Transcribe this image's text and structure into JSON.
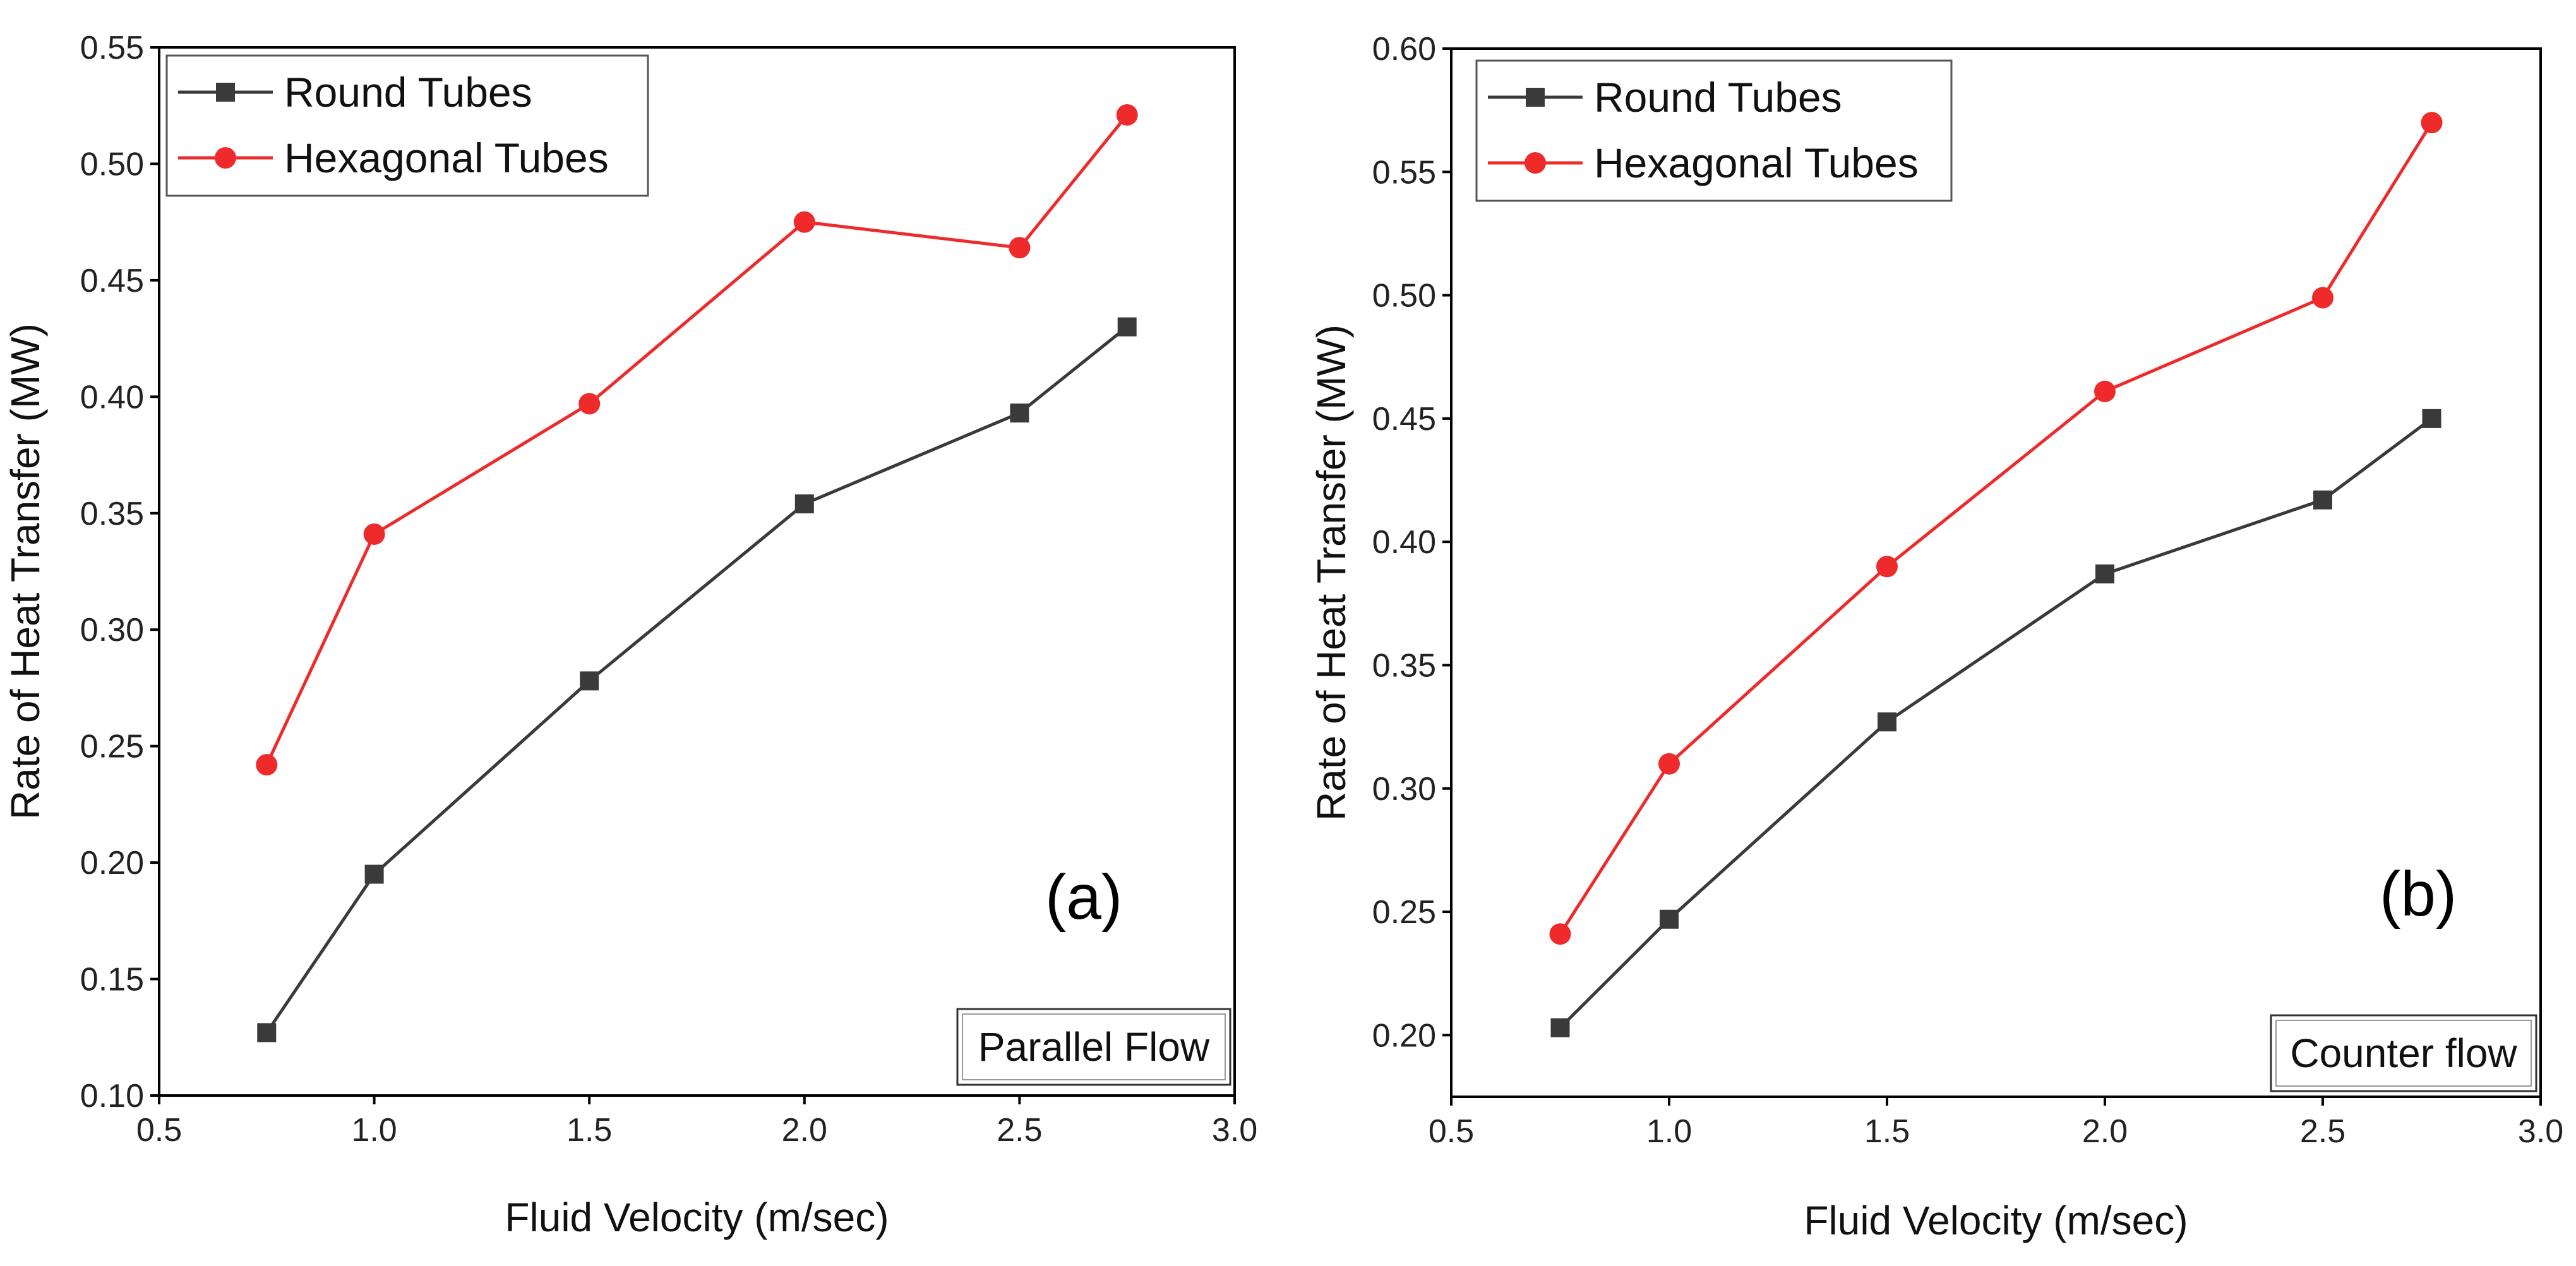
{
  "chart_data": [
    {
      "type": "line",
      "panel_label": "(a)",
      "flow_label": "Parallel Flow",
      "xlabel": "Fluid Velocity (m/sec)",
      "ylabel": "Rate of Heat Transfer (MW)",
      "xlim": [
        0.5,
        3.0
      ],
      "ylim": [
        0.1,
        0.55
      ],
      "xticks": [
        "0.5",
        "1.0",
        "1.5",
        "2.0",
        "2.5",
        "3.0"
      ],
      "yticks": [
        "0.10",
        "0.15",
        "0.20",
        "0.25",
        "0.30",
        "0.35",
        "0.40",
        "0.45",
        "0.50",
        "0.55"
      ],
      "legend_position": "top-left",
      "series": [
        {
          "name": "Round Tubes",
          "color": "#3a3a3a",
          "marker": "square",
          "x": [
            0.75,
            1.0,
            1.5,
            2.0,
            2.5,
            2.75
          ],
          "values": [
            0.127,
            0.195,
            0.278,
            0.354,
            0.393,
            0.43
          ]
        },
        {
          "name": "Hexagonal Tubes",
          "color": "#ee2a2a",
          "marker": "circle",
          "x": [
            0.75,
            1.0,
            1.5,
            2.0,
            2.5,
            2.75
          ],
          "values": [
            0.242,
            0.341,
            0.397,
            0.475,
            0.464,
            0.521
          ]
        }
      ]
    },
    {
      "type": "line",
      "panel_label": "(b)",
      "flow_label": "Counter flow",
      "xlabel": "Fluid Velocity (m/sec)",
      "ylabel": "Rate of Heat Transfer (MW)",
      "xlim": [
        0.5,
        3.0
      ],
      "ylim": [
        0.175,
        0.6
      ],
      "xticks": [
        "0.5",
        "1.0",
        "1.5",
        "2.0",
        "2.5",
        "3.0"
      ],
      "yticks": [
        "0.20",
        "0.25",
        "0.30",
        "0.35",
        "0.40",
        "0.45",
        "0.50",
        "0.55",
        "0.60"
      ],
      "legend_position": "top-left",
      "series": [
        {
          "name": "Round Tubes",
          "color": "#3a3a3a",
          "marker": "square",
          "x": [
            0.75,
            1.0,
            1.5,
            2.0,
            2.5,
            2.75
          ],
          "values": [
            0.203,
            0.247,
            0.327,
            0.387,
            0.417,
            0.45
          ]
        },
        {
          "name": "Hexagonal Tubes",
          "color": "#ee2a2a",
          "marker": "circle",
          "x": [
            0.75,
            1.0,
            1.5,
            2.0,
            2.5,
            2.75
          ],
          "values": [
            0.241,
            0.31,
            0.39,
            0.461,
            0.499,
            0.57
          ]
        }
      ]
    }
  ]
}
